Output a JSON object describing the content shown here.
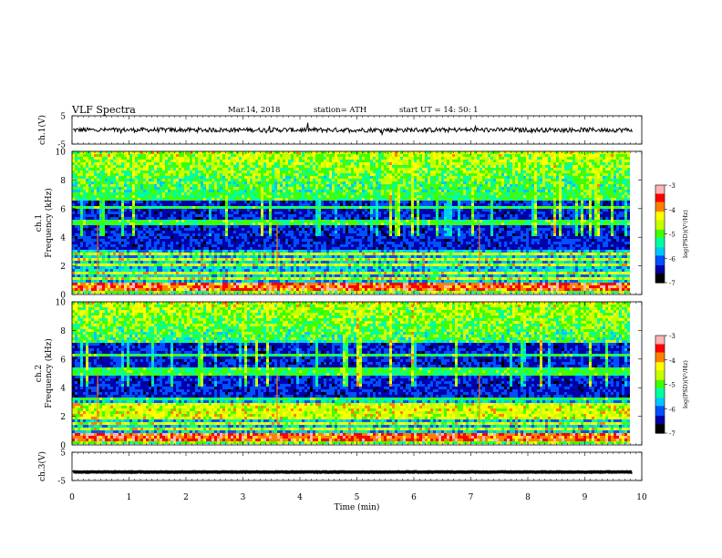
{
  "header": {
    "title": "VLF  Spectra",
    "date": "Mar.14, 2018",
    "station": "station= ATH",
    "start": "start  UT  =   14: 50: 1"
  },
  "colors": {
    "trace": "#000000",
    "colormap": [
      "#000000",
      "#0000aa",
      "#0050ff",
      "#00c8ff",
      "#00ffa0",
      "#40ff00",
      "#c8ff00",
      "#ffff00",
      "#ff8000",
      "#ff0000",
      "#ffb4b4",
      "#ffffff"
    ]
  },
  "chart_data": [
    {
      "type": "line",
      "id": "ch1",
      "ylabel": "ch.1(V)",
      "ylim": [
        -5,
        5
      ],
      "yticks": [
        "5",
        "-5"
      ],
      "level_volts": 0.0,
      "noise_amplitude_volts": 0.8
    },
    {
      "type": "heatmap",
      "id": "spec1",
      "ylabel": "ch.1\nFrequency (kHz)",
      "ylim": [
        0,
        10
      ],
      "yticks": [
        "0",
        "2",
        "4",
        "6",
        "8",
        "10"
      ],
      "colorbar": {
        "label": "log(PSD)(V²/Hz)",
        "range": [
          -7,
          -3
        ],
        "ticks": [
          "-3",
          "-4",
          "-5",
          "-6",
          "-7"
        ]
      },
      "strong_bands_khz": [
        0.3,
        0.5,
        0.7,
        1.1,
        1.5,
        2.0,
        2.4,
        2.8,
        5.0,
        6.1,
        6.6,
        6.9
      ],
      "event_lines_min": [
        0.45,
        3.6,
        7.15
      ]
    },
    {
      "type": "heatmap",
      "id": "spec2",
      "ylabel": "ch.2\nFrequency (kHz)",
      "ylim": [
        0,
        10
      ],
      "yticks": [
        "0",
        "2",
        "4",
        "6",
        "8",
        "10"
      ],
      "colorbar": {
        "label": "log(PSD)(V²/Hz)",
        "range": [
          -7,
          -3
        ],
        "ticks": [
          "-3",
          "-4",
          "-5",
          "-6",
          "-7"
        ]
      },
      "strong_bands_khz": [
        0.3,
        0.6,
        1.0,
        1.5,
        1.9,
        2.3,
        2.7,
        3.2,
        4.9,
        5.2,
        6.2
      ],
      "event_lines_min": [
        0.45,
        3.6,
        7.15
      ]
    },
    {
      "type": "line",
      "id": "ch3",
      "ylabel": "ch.3(V)",
      "ylim": [
        -5,
        5
      ],
      "yticks": [
        "5",
        "-5"
      ],
      "level_volts": -2.0,
      "noise_amplitude_volts": 0.1
    }
  ],
  "xaxis": {
    "label": "Time  (min)",
    "range": [
      0,
      10
    ],
    "data_end": 9.83,
    "ticks": [
      "0",
      "1",
      "2",
      "3",
      "4",
      "5",
      "6",
      "7",
      "8",
      "9",
      "10"
    ]
  }
}
